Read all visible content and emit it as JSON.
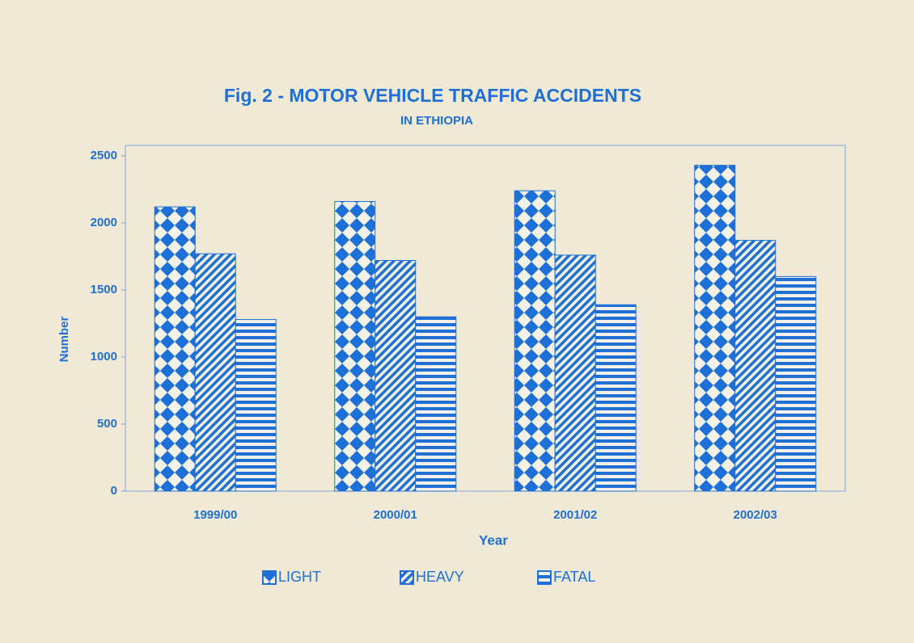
{
  "chart_data": {
    "type": "bar",
    "title": "Fig. 2 - MOTOR VEHICLE TRAFFIC ACCIDENTS",
    "subtitle": "IN ETHIOPIA",
    "x_label": "Year",
    "y_label": "Number",
    "categories": [
      "1999/00",
      "2000/01",
      "2001/02",
      "2002/03"
    ],
    "series": [
      {
        "name": "LIGHT",
        "color": "#1e6fd6",
        "pattern": "diamond",
        "values": [
          2120,
          2160,
          2240,
          2430
        ]
      },
      {
        "name": "HEAVY",
        "color": "#1e6fd6",
        "pattern": "diagonal",
        "values": [
          1770,
          1720,
          1760,
          1870
        ]
      },
      {
        "name": "FATAL",
        "color": "#1e6fd6",
        "pattern": "horizontal",
        "values": [
          1280,
          1300,
          1390,
          1600
        ]
      }
    ],
    "ylim": [
      0,
      2500
    ],
    "yticks": [
      0,
      500,
      1000,
      1500,
      2000,
      2500
    ],
    "grid": false,
    "legend": "bottom"
  }
}
